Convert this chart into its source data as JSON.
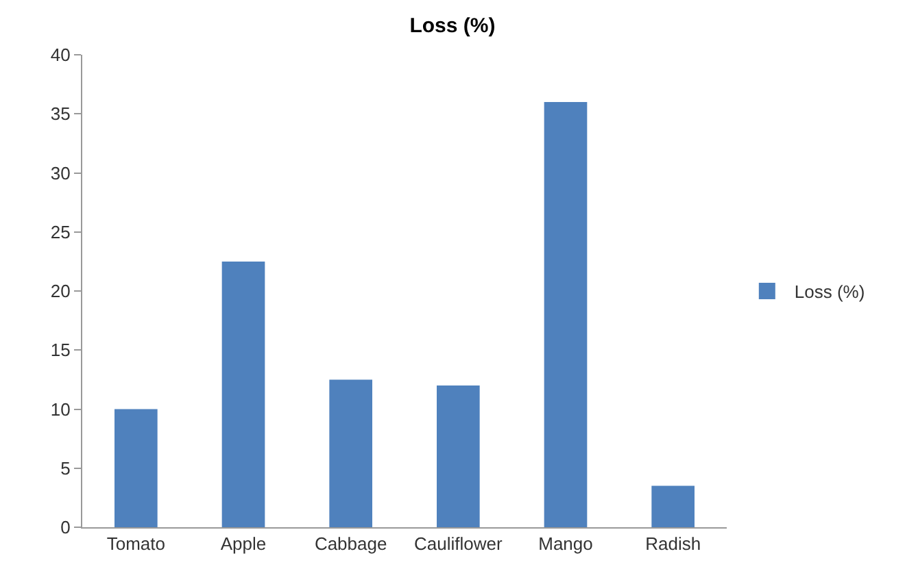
{
  "chart_data": {
    "type": "bar",
    "title": "Loss (%)",
    "categories": [
      "Tomato",
      "Apple",
      "Cabbage",
      "Cauliflower",
      "Mango",
      "Radish"
    ],
    "series": [
      {
        "name": "Loss (%)",
        "color": "#4f81bd",
        "values": [
          10,
          22.5,
          12.5,
          12,
          36,
          3.5
        ]
      }
    ],
    "ylim": [
      0,
      40
    ],
    "yticks": [
      0,
      5,
      10,
      15,
      20,
      25,
      30,
      35,
      40
    ],
    "grid": false,
    "legend": "right"
  }
}
